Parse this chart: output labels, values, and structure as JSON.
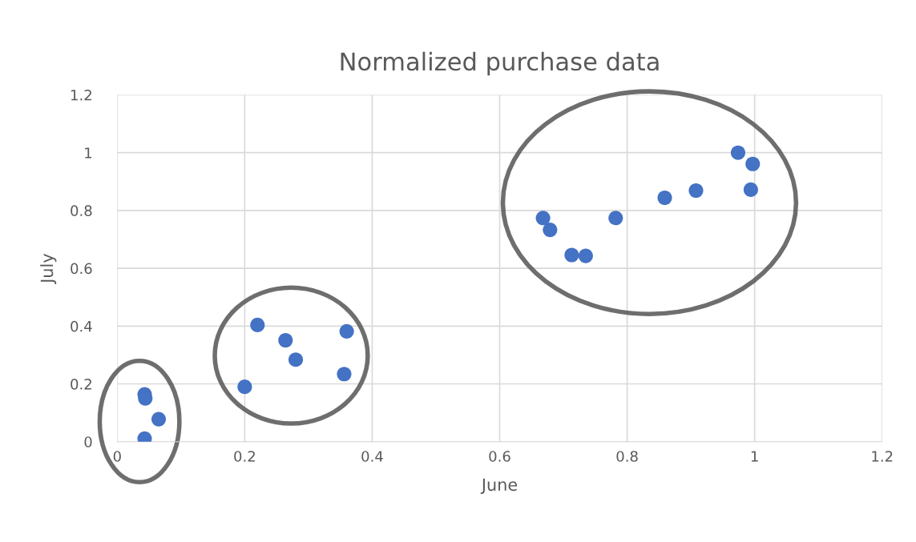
{
  "chart_data": {
    "type": "scatter",
    "title": "Normalized purchase data",
    "xlabel": "June",
    "ylabel": "July",
    "x": [
      0.043,
      0.044,
      0.065,
      0.043,
      0.2,
      0.22,
      0.264,
      0.28,
      0.36,
      0.356,
      0.668,
      0.679,
      0.713,
      0.735,
      0.782,
      0.859,
      0.908,
      0.974,
      0.997,
      0.994
    ],
    "values": [
      0.164,
      0.15,
      0.078,
      0.011,
      0.19,
      0.404,
      0.351,
      0.284,
      0.382,
      0.234,
      0.774,
      0.733,
      0.646,
      0.643,
      0.774,
      0.844,
      0.869,
      1.0,
      0.961,
      0.872
    ],
    "color": "#4472c4",
    "marker": "circle",
    "xlim": [
      0,
      1.2
    ],
    "xticks": [
      0,
      0.2,
      0.4,
      0.6,
      0.8,
      1,
      1.2
    ],
    "ylim": [
      0,
      1.2
    ],
    "yticks": [
      0,
      0.2,
      0.4,
      0.6,
      0.8,
      1,
      1.2
    ],
    "grid": true,
    "legend": false
  }
}
